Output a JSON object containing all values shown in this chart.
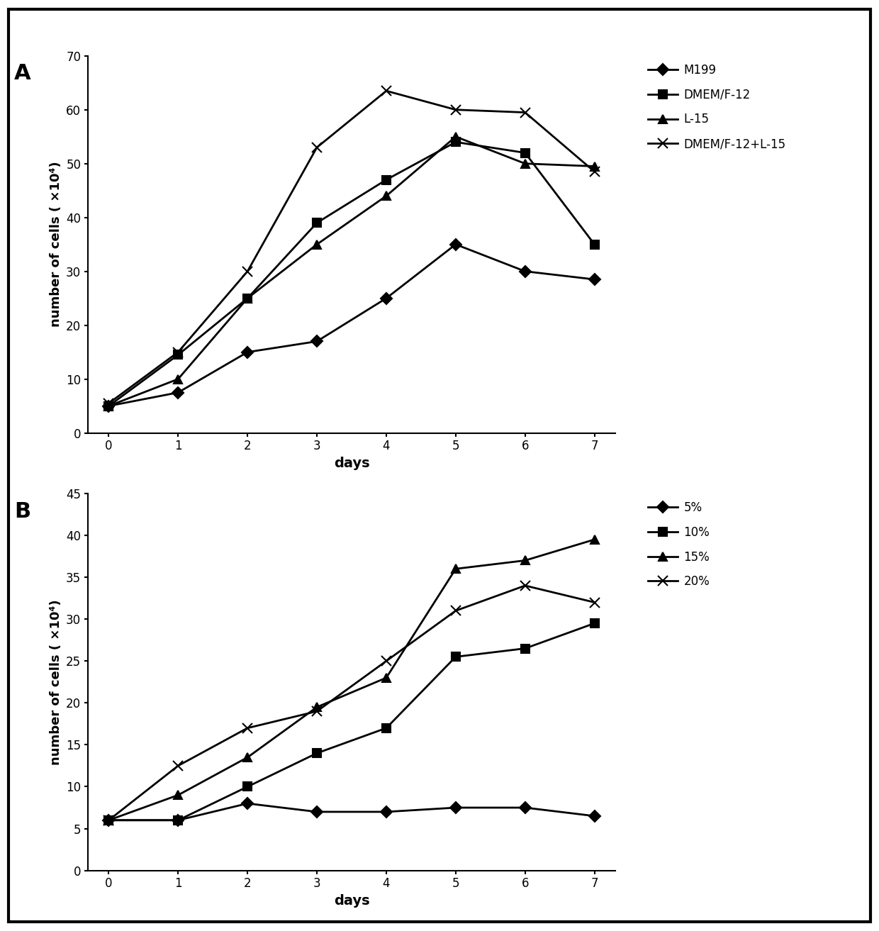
{
  "panel_A": {
    "days": [
      0,
      1,
      2,
      3,
      4,
      5,
      6,
      7
    ],
    "series": [
      {
        "label": "M199",
        "values": [
          5,
          7.5,
          15,
          17,
          25,
          35,
          30,
          28.5
        ],
        "marker": "D",
        "markersize": 8,
        "linewidth": 2.0
      },
      {
        "label": "DMEM/F-12",
        "values": [
          5,
          14.5,
          25,
          39,
          47,
          54,
          52,
          35
        ],
        "marker": "s",
        "markersize": 8,
        "linewidth": 2.0
      },
      {
        "label": "L-15",
        "values": [
          5,
          10,
          25,
          35,
          44,
          55,
          50,
          49.5
        ],
        "marker": "^",
        "markersize": 9,
        "linewidth": 2.0
      },
      {
        "label": "DMEM/F-12+L-15",
        "values": [
          5.5,
          15,
          30,
          53,
          63.5,
          60,
          59.5,
          48.5
        ],
        "marker": "x",
        "markersize": 10,
        "linewidth": 2.0
      }
    ],
    "ylim": [
      0,
      70
    ],
    "yticks": [
      0,
      10,
      20,
      30,
      40,
      50,
      60,
      70
    ],
    "ylabel": "number of cells ( ×10⁴)",
    "xlabel": "days",
    "panel_label": "A"
  },
  "panel_B": {
    "days": [
      0,
      1,
      2,
      3,
      4,
      5,
      6,
      7
    ],
    "series": [
      {
        "label": "5%",
        "values": [
          6,
          6,
          8,
          7,
          7,
          7.5,
          7.5,
          6.5
        ],
        "marker": "D",
        "markersize": 8,
        "linewidth": 2.0
      },
      {
        "label": "10%",
        "values": [
          6,
          6,
          10,
          14,
          17,
          25.5,
          26.5,
          29.5
        ],
        "marker": "s",
        "markersize": 8,
        "linewidth": 2.0
      },
      {
        "label": "15%",
        "values": [
          6,
          9,
          13.5,
          19.5,
          23,
          36,
          37,
          39.5
        ],
        "marker": "^",
        "markersize": 9,
        "linewidth": 2.0
      },
      {
        "label": "20%",
        "values": [
          6,
          12.5,
          17,
          19,
          25,
          31,
          34,
          32
        ],
        "marker": "x",
        "markersize": 10,
        "linewidth": 2.0
      }
    ],
    "ylim": [
      0,
      45
    ],
    "yticks": [
      0,
      5,
      10,
      15,
      20,
      25,
      30,
      35,
      40,
      45
    ],
    "ylabel": "number of cells ( ×10⁴)",
    "xlabel": "days",
    "panel_label": "B"
  },
  "line_color": "#000000",
  "bg_color": "#ffffff",
  "border_color": "#000000"
}
